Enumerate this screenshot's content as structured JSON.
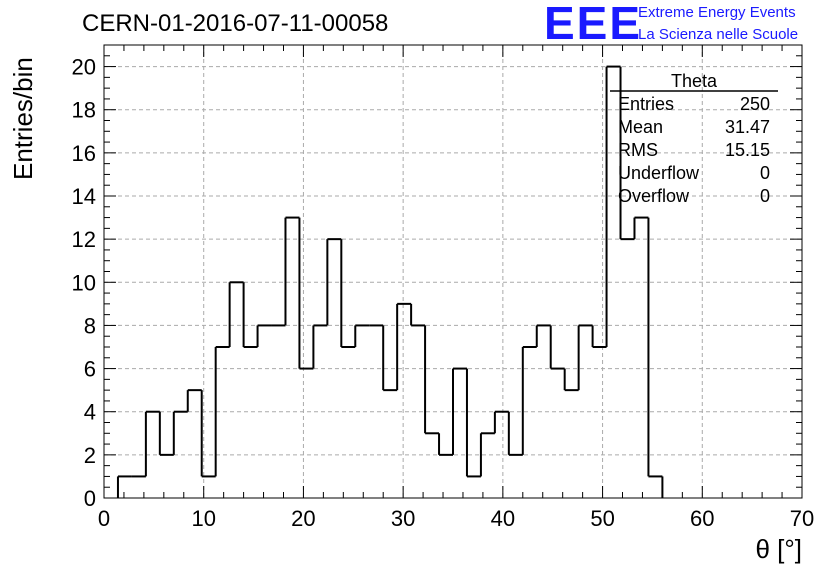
{
  "chart_data": {
    "type": "bar",
    "title": "CERN-01-2016-07-11-00058",
    "xlabel": "θ [°]",
    "ylabel": "Entries/bin",
    "xlim": [
      0,
      70
    ],
    "ylim": [
      0,
      21
    ],
    "x_ticks": [
      0,
      10,
      20,
      30,
      40,
      50,
      60,
      70
    ],
    "y_ticks": [
      0,
      2,
      4,
      6,
      8,
      10,
      12,
      14,
      16,
      18,
      20
    ],
    "grid": true,
    "bin_width": 1.4,
    "bin_edges_start": 1.4,
    "values": [
      1,
      1,
      4,
      2,
      4,
      5,
      1,
      7,
      10,
      7,
      8,
      8,
      13,
      6,
      8,
      12,
      7,
      8,
      8,
      5,
      9,
      8,
      3,
      2,
      6,
      1,
      3,
      4,
      2,
      7,
      8,
      6,
      5,
      8,
      7,
      20,
      12,
      13,
      1
    ],
    "stats_box": {
      "name": "Theta",
      "rows": [
        {
          "label": "Entries",
          "value": "250"
        },
        {
          "label": "Mean",
          "value": "31.47"
        },
        {
          "label": "RMS",
          "value": "15.15"
        },
        {
          "label": "Underflow",
          "value": "0"
        },
        {
          "label": "Overflow",
          "value": "0"
        }
      ]
    }
  },
  "logo": {
    "text": "EEE",
    "line1": "Extreme Energy Events",
    "line2": "La Scienza nelle Scuole",
    "color": "#1a1aff"
  },
  "colors": {
    "line": "#000000",
    "grid": "#aaaaaa"
  }
}
